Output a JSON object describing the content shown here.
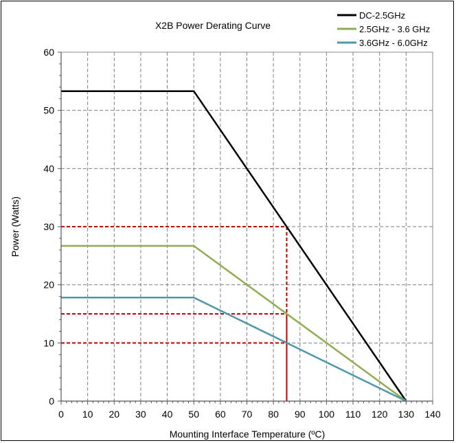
{
  "chart_data": {
    "type": "line",
    "title": "X2B Power Derating Curve",
    "xlabel": "Mounting Interface Temperature (ºC)",
    "ylabel": "Power (Watts)",
    "xlim": [
      0,
      140
    ],
    "ylim": [
      0,
      60
    ],
    "x_ticks": [
      "0",
      "10",
      "20",
      "30",
      "40",
      "50",
      "60",
      "70",
      "80",
      "90",
      "100",
      "110",
      "120",
      "130",
      "140"
    ],
    "y_ticks": [
      "0",
      "10",
      "20",
      "30",
      "40",
      "50",
      "60"
    ],
    "grid": true,
    "legend_position": "top-right",
    "series": [
      {
        "name": "DC-2.5GHz",
        "color": "#000000",
        "x": [
          0,
          50,
          130
        ],
        "y": [
          53.3,
          53.3,
          0
        ]
      },
      {
        "name": "2.5GHz - 3.6 GHz",
        "color": "#8fad4f",
        "x": [
          0,
          50,
          130
        ],
        "y": [
          26.7,
          26.7,
          0
        ]
      },
      {
        "name": "3.6GHz - 6.0GHz",
        "color": "#4d97a8",
        "x": [
          0,
          50,
          130
        ],
        "y": [
          17.8,
          17.8,
          0
        ]
      }
    ],
    "reference_lines": {
      "color": "#c00000",
      "vertical_x": 85,
      "horizontal_y": [
        30,
        15,
        10
      ]
    }
  }
}
